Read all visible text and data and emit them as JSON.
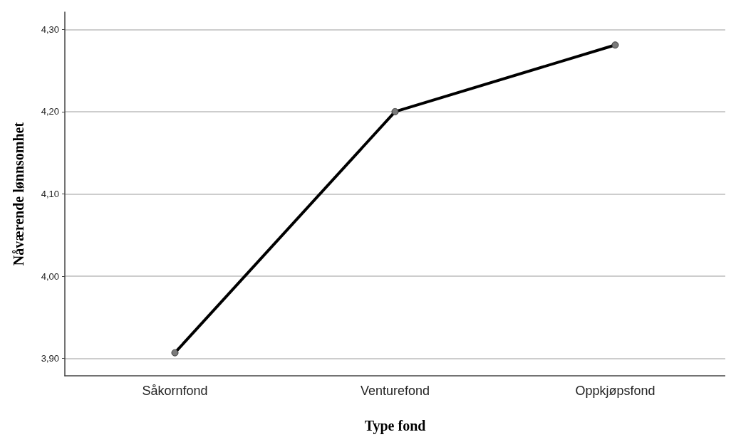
{
  "chart_data": {
    "type": "line",
    "xlabel": "Type fond",
    "ylabel": "Nåværende lønnsomhet",
    "categories": [
      "Såkornfond",
      "Venturefond",
      "Oppkjøpsfond"
    ],
    "series": [
      {
        "color": "#000000",
        "values": [
          3.907,
          4.2,
          4.281
        ]
      }
    ],
    "ylim": [
      3.879,
      4.321
    ],
    "yticks": [
      {
        "value": 3.9,
        "label": "3,90"
      },
      {
        "value": 4.0,
        "label": "4,00"
      },
      {
        "value": 4.1,
        "label": "4,10"
      },
      {
        "value": 4.2,
        "label": "4,20"
      },
      {
        "value": 4.3,
        "label": "4,30"
      }
    ],
    "grid": "y",
    "marker": "circle",
    "line_style": "solid"
  }
}
